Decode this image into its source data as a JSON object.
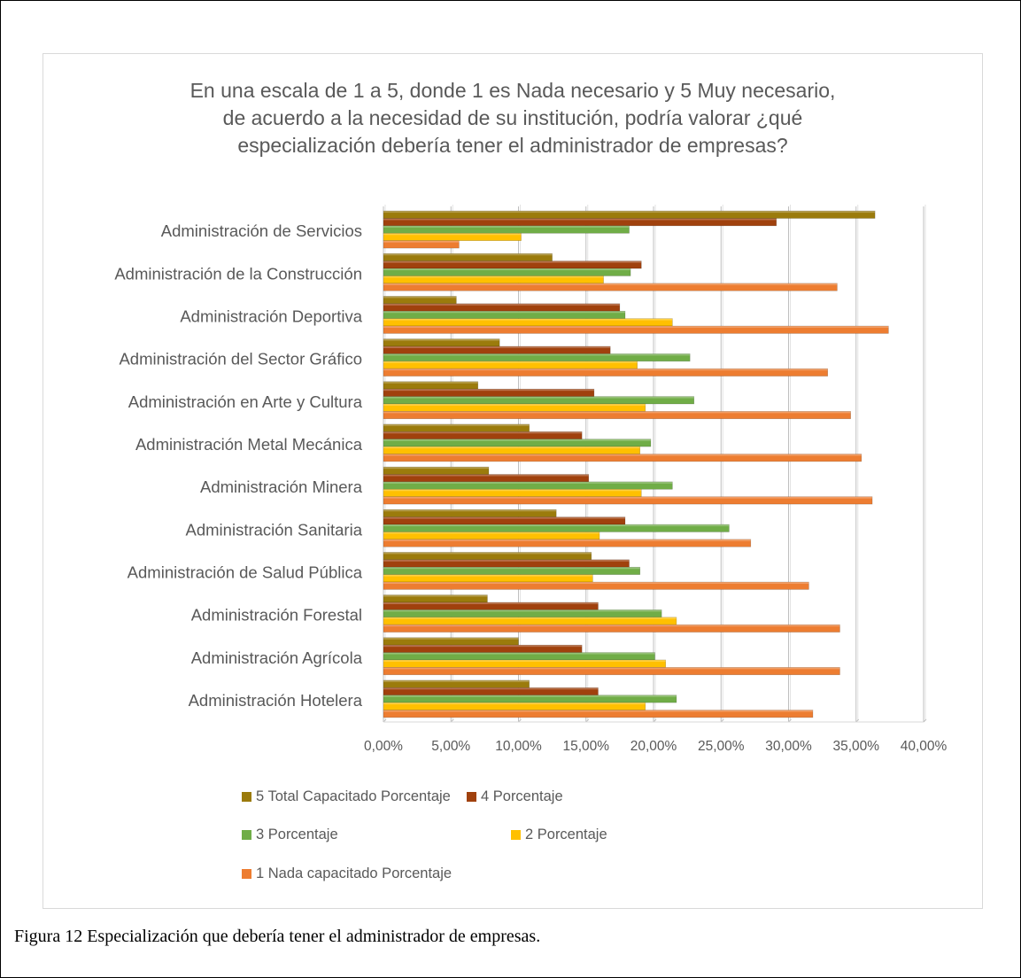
{
  "chart_data": {
    "type": "bar",
    "orientation": "horizontal",
    "title": "En una escala de 1 a 5, donde 1 es Nada necesario y 5 Muy necesario, de acuerdo a la necesidad de su institución, podría valorar ¿qué especialización debería tener el administrador de empresas?",
    "title_lines": [
      "En una escala de 1 a 5, donde 1 es Nada necesario y 5 Muy necesario,",
      "de acuerdo a la necesidad de su institución, podría valorar ¿qué",
      "especialización debería tener el administrador de empresas?"
    ],
    "categories": [
      "Administración de Servicios",
      "Administración de la Construcción",
      "Administración Deportiva",
      "Administración del Sector Gráfico",
      "Administración en Arte y Cultura",
      "Administración Metal Mecánica",
      "Administración Minera",
      "Administración Sanitaria",
      "Administración de Salud Pública",
      "Administración Forestal",
      "Administración Agrícola",
      "Administración Hotelera"
    ],
    "series": [
      {
        "name": "5 Total Capacitado Porcentaje",
        "color": "#9b7b0c",
        "values": [
          36.4,
          12.5,
          5.4,
          8.6,
          7.0,
          10.8,
          7.8,
          12.8,
          15.4,
          7.7,
          10.0,
          10.8
        ]
      },
      {
        "name": "4 Porcentaje",
        "color": "#a0410d",
        "values": [
          29.1,
          19.1,
          17.5,
          16.8,
          15.6,
          14.7,
          15.2,
          17.9,
          18.2,
          15.9,
          14.7,
          15.9
        ]
      },
      {
        "name": "3 Porcentaje",
        "color": "#70ad47",
        "values": [
          18.2,
          18.3,
          17.9,
          22.7,
          23.0,
          19.8,
          21.4,
          25.6,
          19.0,
          20.6,
          20.1,
          21.7
        ]
      },
      {
        "name": "2 Porcentaje",
        "color": "#ffc000",
        "values": [
          10.2,
          16.3,
          21.4,
          18.8,
          19.4,
          19.0,
          19.1,
          16.0,
          15.5,
          21.7,
          20.9,
          19.4
        ]
      },
      {
        "name": "1 Nada capacitado Porcentaje",
        "color": "#ed7d31",
        "values": [
          5.6,
          33.6,
          37.4,
          32.9,
          34.6,
          35.4,
          36.2,
          27.2,
          31.5,
          33.8,
          33.8,
          31.8
        ]
      }
    ],
    "xlim": [
      0,
      40
    ],
    "xticks": [
      "0,00%",
      "5,00%",
      "10,00%",
      "15,00%",
      "20,00%",
      "25,00%",
      "30,00%",
      "35,00%",
      "40,00%"
    ],
    "grid": true,
    "legend": "bottom"
  },
  "caption": "Figura 12  Especialización que debería tener el administrador de empresas."
}
